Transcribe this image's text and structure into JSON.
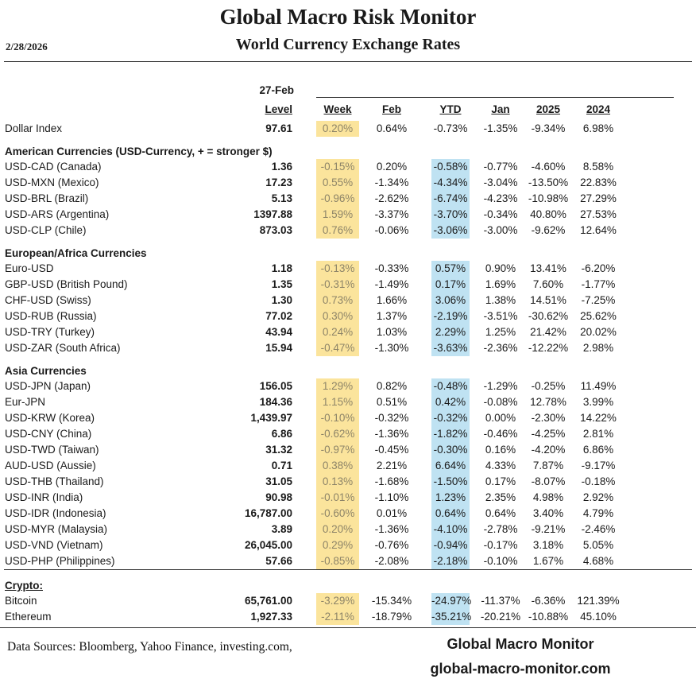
{
  "header": {
    "title": "Global Macro Risk Monitor",
    "subtitle": "World Currency Exchange Rates",
    "date": "2/28/2026"
  },
  "table": {
    "as_of": "27-Feb",
    "columns": {
      "level": "Level",
      "week": "Week",
      "feb": "Feb",
      "ytd": "YTD",
      "jan": "Jan",
      "y2025": "2025",
      "y2024": "2024"
    },
    "highlight_colors": {
      "week": "#FBE49C",
      "ytd": "#BFE2F2"
    },
    "rows": [
      {
        "type": "data",
        "label": "Dollar Index",
        "level": "97.61",
        "week": "0.20%",
        "feb": "0.64%",
        "ytd": "-0.73%",
        "jan": "-1.35%",
        "y2025": "-9.34%",
        "y2024": "6.98%",
        "ytd_hl": false
      },
      {
        "type": "section",
        "label": "American Currencies (USD-Currency, + = stronger $)"
      },
      {
        "type": "data",
        "label": "USD-CAD (Canada)",
        "level": "1.36",
        "week": "-0.15%",
        "feb": "0.20%",
        "ytd": "-0.58%",
        "jan": "-0.77%",
        "y2025": "-4.60%",
        "y2024": "8.58%",
        "ytd_hl": true
      },
      {
        "type": "data",
        "label": "USD-MXN  (Mexico)",
        "level": "17.23",
        "week": "0.55%",
        "feb": "-1.34%",
        "ytd": "-4.34%",
        "jan": "-3.04%",
        "y2025": "-13.50%",
        "y2024": "22.83%",
        "ytd_hl": true
      },
      {
        "type": "data",
        "label": "USD-BRL (Brazil)",
        "level": "5.13",
        "week": "-0.96%",
        "feb": "-2.62%",
        "ytd": "-6.74%",
        "jan": "-4.23%",
        "y2025": "-10.98%",
        "y2024": "27.29%",
        "ytd_hl": true
      },
      {
        "type": "data",
        "label": "USD-ARS (Argentina)",
        "level": "1397.88",
        "week": "1.59%",
        "feb": "-3.37%",
        "ytd": "-3.70%",
        "jan": "-0.34%",
        "y2025": "40.80%",
        "y2024": "27.53%",
        "ytd_hl": true
      },
      {
        "type": "data",
        "label": "USD-CLP (Chile)",
        "level": "873.03",
        "week": "0.76%",
        "feb": "-0.06%",
        "ytd": "-3.06%",
        "jan": "-3.00%",
        "y2025": "-9.62%",
        "y2024": "12.64%",
        "ytd_hl": true
      },
      {
        "type": "section",
        "label": "European/Africa Currencies"
      },
      {
        "type": "data",
        "label": "Euro-USD",
        "level": "1.18",
        "week": "-0.13%",
        "feb": "-0.33%",
        "ytd": "0.57%",
        "jan": "0.90%",
        "y2025": "13.41%",
        "y2024": "-6.20%",
        "ytd_hl": true
      },
      {
        "type": "data",
        "label": "GBP-USD (British Pound)",
        "level": "1.35",
        "week": "-0.31%",
        "feb": "-1.49%",
        "ytd": "0.17%",
        "jan": "1.69%",
        "y2025": "7.60%",
        "y2024": "-1.77%",
        "ytd_hl": true
      },
      {
        "type": "data",
        "label": "CHF-USD (Swiss)",
        "level": "1.30",
        "week": "0.73%",
        "feb": "1.66%",
        "ytd": "3.06%",
        "jan": "1.38%",
        "y2025": "14.51%",
        "y2024": "-7.25%",
        "ytd_hl": true
      },
      {
        "type": "data",
        "label": "USD-RUB (Russia)",
        "level": "77.02",
        "week": "0.30%",
        "feb": "1.37%",
        "ytd": "-2.19%",
        "jan": "-3.51%",
        "y2025": "-30.62%",
        "y2024": "25.62%",
        "ytd_hl": true
      },
      {
        "type": "data",
        "label": "USD-TRY (Turkey)",
        "level": "43.94",
        "week": "0.24%",
        "feb": "1.03%",
        "ytd": "2.29%",
        "jan": "1.25%",
        "y2025": "21.42%",
        "y2024": "20.02%",
        "ytd_hl": true
      },
      {
        "type": "data",
        "label": "USD-ZAR (South Africa)",
        "level": "15.94",
        "week": "-0.47%",
        "feb": "-1.30%",
        "ytd": "-3.63%",
        "jan": "-2.36%",
        "y2025": "-12.22%",
        "y2024": "2.98%",
        "ytd_hl": true
      },
      {
        "type": "section",
        "label": "Asia Currencies"
      },
      {
        "type": "data",
        "label": "USD-JPN (Japan)",
        "level": "156.05",
        "week": "1.29%",
        "feb": "0.82%",
        "ytd": "-0.48%",
        "jan": "-1.29%",
        "y2025": "-0.25%",
        "y2024": "11.49%",
        "ytd_hl": true
      },
      {
        "type": "data",
        "label": "Eur-JPN",
        "level": "184.36",
        "week": "1.15%",
        "feb": "0.51%",
        "ytd": "0.42%",
        "jan": "-0.08%",
        "y2025": "12.78%",
        "y2024": "3.99%",
        "ytd_hl": true
      },
      {
        "type": "data",
        "label": "USD-KRW (Korea)",
        "level": "1,439.97",
        "week": "-0.10%",
        "feb": "-0.32%",
        "ytd": "-0.32%",
        "jan": "0.00%",
        "y2025": "-2.30%",
        "y2024": "14.22%",
        "ytd_hl": true
      },
      {
        "type": "data",
        "label": "USD-CNY (China)",
        "level": "6.86",
        "week": "-0.62%",
        "feb": "-1.36%",
        "ytd": "-1.82%",
        "jan": "-0.46%",
        "y2025": "-4.25%",
        "y2024": "2.81%",
        "ytd_hl": true
      },
      {
        "type": "data",
        "label": "USD-TWD (Taiwan)",
        "level": "31.32",
        "week": "-0.97%",
        "feb": "-0.45%",
        "ytd": "-0.30%",
        "jan": "0.16%",
        "y2025": "-4.20%",
        "y2024": "6.86%",
        "ytd_hl": true
      },
      {
        "type": "data",
        "label": "AUD-USD (Aussie)",
        "level": "0.71",
        "week": "0.38%",
        "feb": "2.21%",
        "ytd": "6.64%",
        "jan": "4.33%",
        "y2025": "7.87%",
        "y2024": "-9.17%",
        "ytd_hl": true
      },
      {
        "type": "data",
        "label": "USD-THB  (Thailand)",
        "level": "31.05",
        "week": "0.13%",
        "feb": "-1.68%",
        "ytd": "-1.50%",
        "jan": "0.17%",
        "y2025": "-8.07%",
        "y2024": "-0.18%",
        "ytd_hl": true
      },
      {
        "type": "data",
        "label": "USD-INR (India)",
        "level": "90.98",
        "week": "-0.01%",
        "feb": "-1.10%",
        "ytd": "1.23%",
        "jan": "2.35%",
        "y2025": "4.98%",
        "y2024": "2.92%",
        "ytd_hl": true
      },
      {
        "type": "data",
        "label": "USD-IDR (Indonesia)",
        "level": "16,787.00",
        "week": "-0.60%",
        "feb": "0.01%",
        "ytd": "0.64%",
        "jan": "0.64%",
        "y2025": "3.40%",
        "y2024": "4.79%",
        "ytd_hl": true
      },
      {
        "type": "data",
        "label": "USD-MYR (Malaysia)",
        "level": "3.89",
        "week": "0.20%",
        "feb": "-1.36%",
        "ytd": "-4.10%",
        "jan": "-2.78%",
        "y2025": "-9.21%",
        "y2024": "-2.46%",
        "ytd_hl": true
      },
      {
        "type": "data",
        "label": "USD-VND (Vietnam)",
        "level": "26,045.00",
        "week": "0.29%",
        "feb": "-0.76%",
        "ytd": "-0.94%",
        "jan": "-0.17%",
        "y2025": "3.18%",
        "y2024": "5.05%",
        "ytd_hl": true
      },
      {
        "type": "data",
        "label": "USD-PHP (Philippines)",
        "level": "57.66",
        "week": "-0.85%",
        "feb": "-2.08%",
        "ytd": "-2.18%",
        "jan": "-0.10%",
        "y2025": "1.67%",
        "y2024": "4.68%",
        "ytd_hl": true
      },
      {
        "type": "section",
        "label": "Crypto:",
        "underline": true,
        "rule_above": true
      },
      {
        "type": "data",
        "label": "Bitcoin",
        "level": "65,761.00",
        "week": "-3.29%",
        "feb": "-15.34%",
        "ytd": "-24.97%",
        "jan": "-11.37%",
        "y2025": "-6.36%",
        "y2024": "121.39%",
        "ytd_hl": true
      },
      {
        "type": "data",
        "label": "Ethereum",
        "level": "1,927.33",
        "week": "-2.11%",
        "feb": "-18.79%",
        "ytd": "-35.21%",
        "jan": "-20.21%",
        "y2025": "-10.88%",
        "y2024": "45.10%",
        "ytd_hl": true
      }
    ]
  },
  "footer": {
    "sources": "Data Sources:  Bloomberg,  Yahoo Finance, investing.com,",
    "brand": "Global Macro Monitor",
    "site": "global-macro-monitor.com"
  }
}
